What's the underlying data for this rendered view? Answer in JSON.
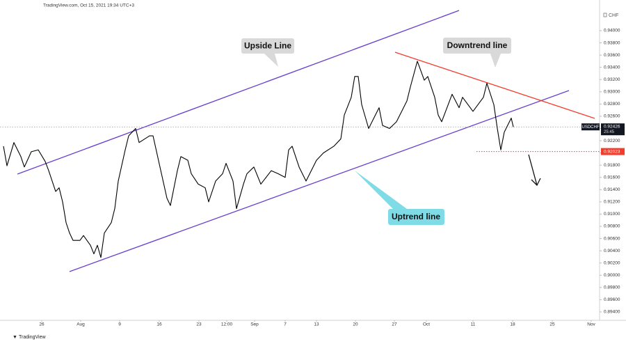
{
  "chart_data": {
    "type": "line",
    "header": "TradingView.com, Oct 15, 2021 19:34 UTC+3",
    "currency": "CHF",
    "footer": "TradingView",
    "countdown": "25:45",
    "last_price": 0.92426,
    "support_level": 0.92023,
    "annotations": [
      "Upside Line",
      "Downtrend line",
      "Uptrend line"
    ],
    "x": [
      200.125,
      200.75,
      202,
      203.25,
      203.875,
      205.125,
      206.375,
      207.625,
      208.25,
      209.5,
      210.125,
      210.75,
      211.375,
      212,
      212.625,
      213.875,
      214.5,
      215.75,
      216.375,
      217,
      217.625,
      218.25,
      219.5,
      220.125,
      220.75,
      222,
      222.625,
      223.875,
      224.5,
      226.375,
      227,
      228.25,
      229.5,
      230.125,
      231.375,
      232,
      233.25,
      233.875,
      235.125,
      236.375,
      237,
      238.25,
      239.5,
      240.125,
      241.375,
      242,
      243.25,
      243.875,
      245.125,
      246.375,
      248.25,
      249.5,
      250.75,
      251.375,
      252,
      253.25,
      254.5,
      256.375,
      257.625,
      259.5,
      260.75,
      261.375,
      262.625,
      263.25,
      263.875,
      264.5,
      265.75,
      267.625,
      268.25,
      269.5,
      270.75,
      272.625,
      273.25,
      274.5,
      275.75,
      276.375,
      277.625,
      278.25,
      278.875,
      280.75,
      282,
      282.625,
      284.5,
      286.375,
      287,
      288.25,
      288.875,
      289.5,
      290.125,
      291.375,
      291.75
    ],
    "series": [
      {
        "name": "USDCHF",
        "color": "#000000",
        "values": [
          0.9211,
          0.9179,
          0.9217,
          0.9194,
          0.9177,
          0.9202,
          0.9205,
          0.9186,
          0.9171,
          0.9137,
          0.9143,
          0.912,
          0.9086,
          0.9069,
          0.9057,
          0.9057,
          0.9065,
          0.9049,
          0.9035,
          0.9049,
          0.9029,
          0.9069,
          0.9086,
          0.9109,
          0.9154,
          0.9205,
          0.9228,
          0.924,
          0.9217,
          0.9228,
          0.9228,
          0.9177,
          0.9126,
          0.9114,
          0.9171,
          0.9194,
          0.9188,
          0.9166,
          0.9149,
          0.9143,
          0.912,
          0.9154,
          0.9166,
          0.9183,
          0.9154,
          0.9109,
          0.9149,
          0.9166,
          0.9177,
          0.9149,
          0.9171,
          0.9166,
          0.916,
          0.9205,
          0.9211,
          0.9177,
          0.9154,
          0.9188,
          0.92,
          0.9211,
          0.9223,
          0.9262,
          0.9291,
          0.9325,
          0.9325,
          0.9279,
          0.924,
          0.9274,
          0.9245,
          0.924,
          0.9251,
          0.9285,
          0.9308,
          0.935,
          0.9319,
          0.9325,
          0.9291,
          0.9262,
          0.9251,
          0.9296,
          0.9274,
          0.9291,
          0.9268,
          0.9291,
          0.9314,
          0.9279,
          0.924,
          0.9205,
          0.9234,
          0.9257,
          0.92426
        ]
      }
    ],
    "xlim": [
      199.5,
      307.25
    ],
    "xticks": [
      {
        "value": 207,
        "label": "26"
      },
      {
        "value": 214,
        "label": "Aug"
      },
      {
        "value": 221,
        "label": "9"
      },
      {
        "value": 228.125,
        "label": "16"
      },
      {
        "value": 235.25,
        "label": "23"
      },
      {
        "value": 240.25,
        "label": "12:00"
      },
      {
        "value": 245.25,
        "label": "Sep"
      },
      {
        "value": 250.75,
        "label": "7"
      },
      {
        "value": 256.375,
        "label": "13"
      },
      {
        "value": 263.375,
        "label": "20"
      },
      {
        "value": 270.375,
        "label": "27"
      },
      {
        "value": 276.125,
        "label": "Oct"
      },
      {
        "value": 284.5,
        "label": "11"
      },
      {
        "value": 291.625,
        "label": "18"
      },
      {
        "value": 298.75,
        "label": "25"
      },
      {
        "value": 305.75,
        "label": "Nov"
      }
    ],
    "ylim": [
      0.8924,
      0.9441
    ],
    "yticks": [
      {
        "value": 0.94,
        "label": "0.94000"
      },
      {
        "value": 0.938,
        "label": "0.93800"
      },
      {
        "value": 0.936,
        "label": "0.93600"
      },
      {
        "value": 0.934,
        "label": "0.93400"
      },
      {
        "value": 0.932,
        "label": "0.93200"
      },
      {
        "value": 0.93,
        "label": "0.93000"
      },
      {
        "value": 0.928,
        "label": "0.92800"
      },
      {
        "value": 0.926,
        "label": "0.92600"
      },
      {
        "value": 0.924,
        "label": "0.92400"
      },
      {
        "value": 0.922,
        "label": "0.92200"
      },
      {
        "value": 0.92,
        "label": "0.92000"
      },
      {
        "value": 0.918,
        "label": "0.91800"
      },
      {
        "value": 0.916,
        "label": "0.91600"
      },
      {
        "value": 0.914,
        "label": "0.91400"
      },
      {
        "value": 0.912,
        "label": "0.91200"
      },
      {
        "value": 0.91,
        "label": "0.91000"
      },
      {
        "value": 0.908,
        "label": "0.90800"
      },
      {
        "value": 0.906,
        "label": "0.90600"
      },
      {
        "value": 0.904,
        "label": "0.90400"
      },
      {
        "value": 0.902,
        "label": "0.90200"
      },
      {
        "value": 0.9,
        "label": "0.90000"
      },
      {
        "value": 0.898,
        "label": "0.89800"
      },
      {
        "value": 0.896,
        "label": "0.89600"
      },
      {
        "value": 0.894,
        "label": "0.89400"
      }
    ],
    "grid": false
  }
}
